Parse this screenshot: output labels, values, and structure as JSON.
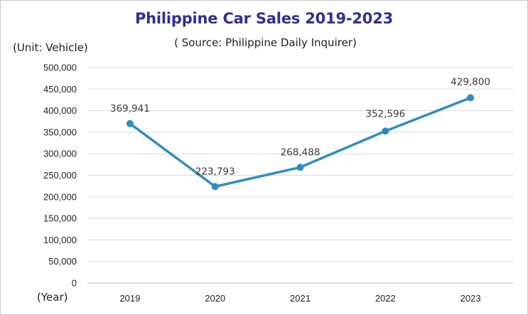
{
  "chart_data": {
    "type": "line",
    "title": "Philippine Car Sales 2019-2023",
    "subtitle": "( Source: Philippine Daily Inquirer)",
    "ylabel": "(Unit: Vehicle)",
    "xlabel": "(Year)",
    "categories": [
      "2019",
      "2020",
      "2021",
      "2022",
      "2023"
    ],
    "values": [
      369941,
      223793,
      268488,
      352596,
      429800
    ],
    "data_labels": [
      "369,941",
      "223,793",
      "268,488",
      "352,596",
      "429,800"
    ],
    "yticks": [
      0,
      50000,
      100000,
      150000,
      200000,
      250000,
      300000,
      350000,
      400000,
      450000,
      500000
    ],
    "ytick_labels": [
      "0",
      "50,000",
      "100,000",
      "150,000",
      "200,000",
      "250,000",
      "300,000",
      "350,000",
      "400,000",
      "450,000",
      "500,000"
    ],
    "ylim": [
      0,
      500000
    ],
    "grid": true,
    "legend": "none",
    "colors": {
      "line": "#2f8cc0",
      "title": "#2e3192",
      "grid": "#d9d9d9"
    }
  }
}
